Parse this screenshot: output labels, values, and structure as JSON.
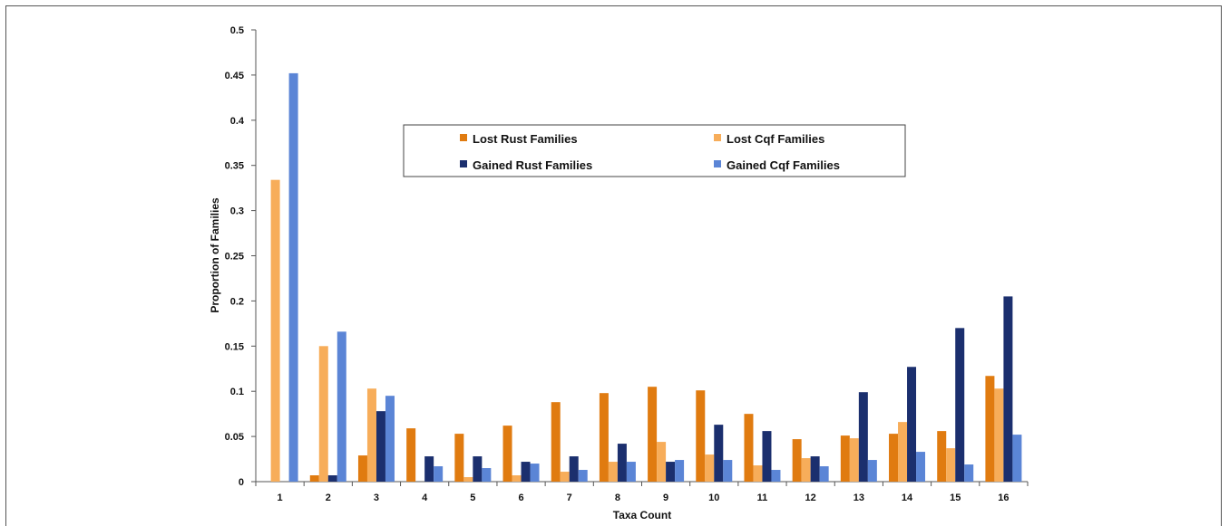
{
  "chart_data": {
    "type": "bar",
    "xlabel": "Taxa Count",
    "ylabel": "Proportion of Families",
    "ylim": [
      0,
      0.5
    ],
    "yticks": [
      "0",
      "0.05",
      "0.1",
      "0.15",
      "0.2",
      "0.25",
      "0.3",
      "0.35",
      "0.4",
      "0.45",
      "0.5"
    ],
    "categories": [
      "1",
      "2",
      "3",
      "4",
      "5",
      "6",
      "7",
      "8",
      "9",
      "10",
      "11",
      "12",
      "13",
      "14",
      "15",
      "16"
    ],
    "legend_position": "top-center",
    "grid": false,
    "series": [
      {
        "name": "Lost Rust Families",
        "color": "#e07b10",
        "values": [
          0,
          0.007,
          0.029,
          0.059,
          0.053,
          0.062,
          0.088,
          0.098,
          0.105,
          0.101,
          0.075,
          0.047,
          0.051,
          0.053,
          0.056,
          0.117
        ]
      },
      {
        "name": "Lost Cqf Families",
        "color": "#f7ad5a",
        "values": [
          0.334,
          0.15,
          0.103,
          0,
          0.005,
          0.007,
          0.011,
          0.022,
          0.044,
          0.03,
          0.018,
          0.026,
          0.048,
          0.066,
          0.037,
          0.103
        ]
      },
      {
        "name": "Gained Rust Families",
        "color": "#1b2f6e",
        "values": [
          0,
          0.007,
          0.078,
          0.028,
          0.028,
          0.022,
          0.028,
          0.042,
          0.022,
          0.063,
          0.056,
          0.028,
          0.099,
          0.127,
          0.17,
          0.205
        ]
      },
      {
        "name": "Gained Cqf Families",
        "color": "#5b85d6",
        "values": [
          0.452,
          0.166,
          0.095,
          0.017,
          0.015,
          0.02,
          0.013,
          0.022,
          0.024,
          0.024,
          0.013,
          0.017,
          0.024,
          0.033,
          0.019,
          0.052
        ]
      }
    ]
  }
}
